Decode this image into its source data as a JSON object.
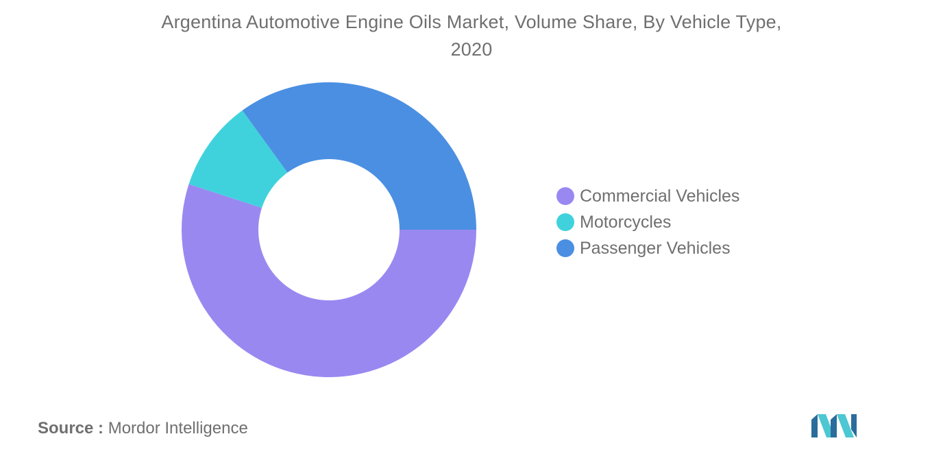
{
  "title_line1": "Argentina Automotive Engine Oils Market, Volume Share, By Vehicle Type,",
  "title_line2": "2020",
  "source_label": "Source :",
  "source_value": "Mordor Intelligence",
  "logo_icon": "mordor-intelligence-logo-icon",
  "colors": {
    "commercial": "#9a88f1",
    "motorcycles": "#40d2dc",
    "passenger": "#4b8fe2",
    "logo_dark": "#2a6c9b",
    "logo_light": "#4dc7d2"
  },
  "chart_data": {
    "type": "pie",
    "variant": "donut",
    "title": "Argentina Automotive Engine Oils Market, Volume Share, By Vehicle Type, 2020",
    "categories": [
      "Commercial Vehicles",
      "Motorcycles",
      "Passenger Vehicles"
    ],
    "values": [
      55,
      10,
      35
    ],
    "unit": "%",
    "legend_position": "right",
    "grid": false
  }
}
